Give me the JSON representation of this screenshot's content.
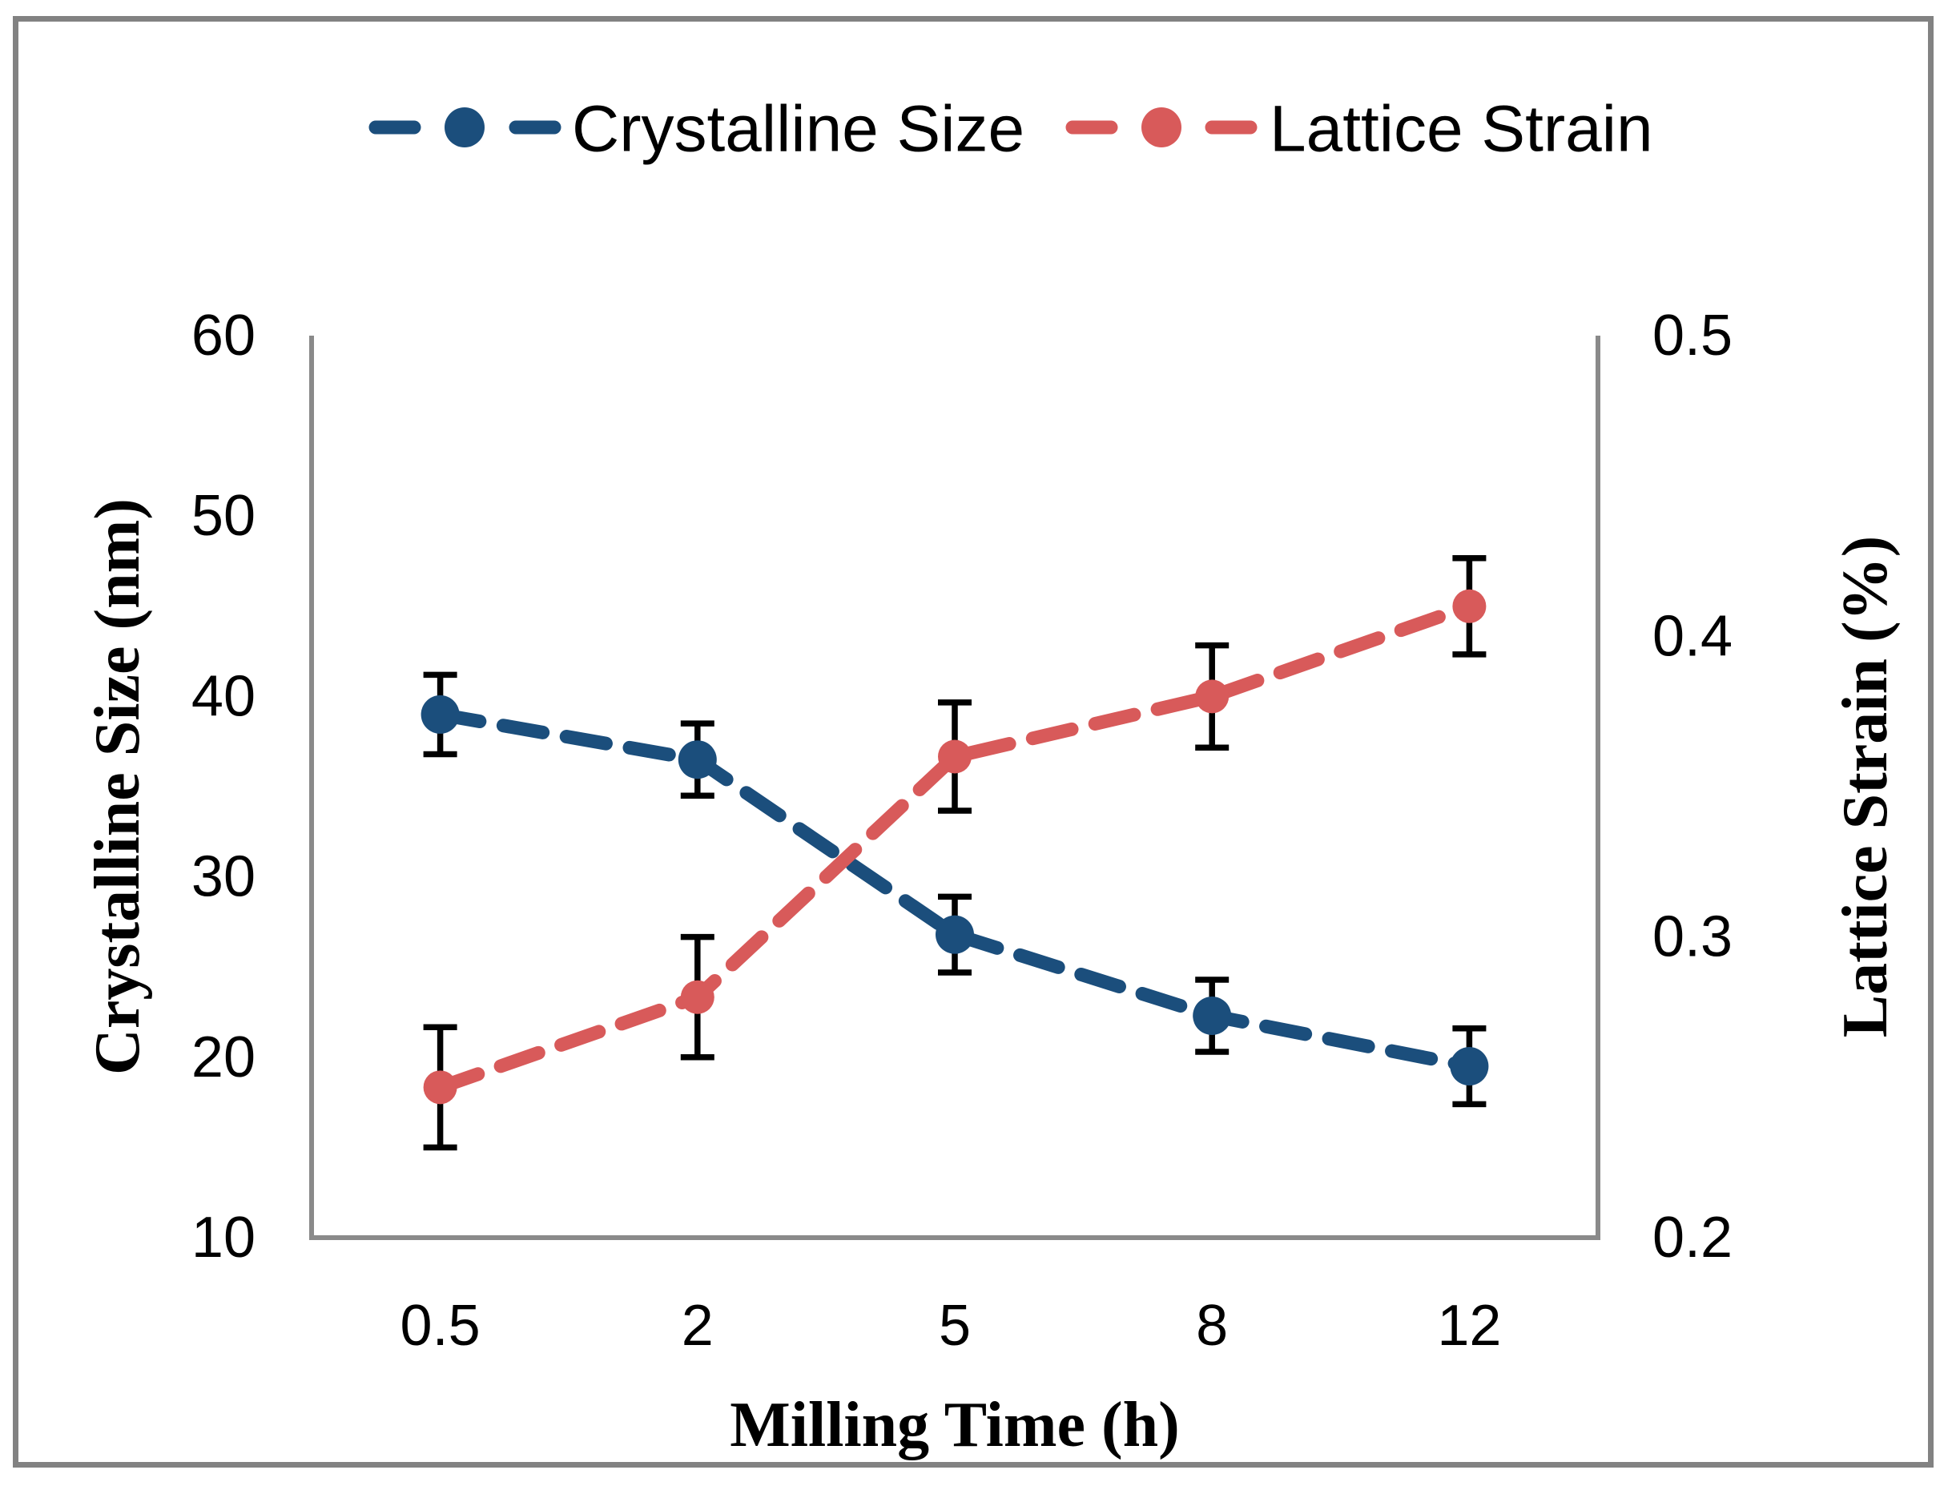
{
  "figure": {
    "background": "#FFFFFF",
    "border_color": "#828282"
  },
  "legend": {
    "position": "top-center",
    "entries": [
      {
        "label": "Crystalline Size",
        "color": "#1B4E7C",
        "glyph": "dash-circle-dash"
      },
      {
        "label": "Lattice Strain",
        "color": "#D85A5A",
        "glyph": "dash-circle-dash"
      }
    ]
  },
  "chart_data": {
    "type": "line",
    "title": "",
    "grid": false,
    "legend_position": "top",
    "axis_line_color": "#8A8A8A",
    "error_bar_color": "#000000",
    "categories": [
      "0.5",
      "2",
      "5",
      "8",
      "12"
    ],
    "x_axis": {
      "title": "Milling Time (h)"
    },
    "left_axis": {
      "title": "Crystalline Size (nm)",
      "min": 10,
      "max": 60,
      "tick_step": 10,
      "tick_labels": [
        "10",
        "20",
        "30",
        "40",
        "50",
        "60"
      ]
    },
    "right_axis": {
      "title": "Lattice Strain (%)",
      "min": 0.2,
      "max": 0.5,
      "tick_step": 0.1,
      "tick_labels": [
        "0.2",
        "0.3",
        "0.4",
        "0.5"
      ]
    },
    "series": [
      {
        "name": "Crystalline Size",
        "axis": "left",
        "color": "#1B4E7C",
        "line_style": "dashed",
        "marker": "circle",
        "values": [
          39.0,
          36.5,
          26.8,
          22.3,
          19.5
        ],
        "error_bars": [
          2.2,
          2.0,
          2.1,
          2.0,
          2.1
        ]
      },
      {
        "name": "Lattice Strain",
        "axis": "right",
        "color": "#D85A5A",
        "line_style": "dashed",
        "marker": "circle",
        "values": [
          0.25,
          0.28,
          0.36,
          0.38,
          0.41
        ],
        "error_bars": [
          0.02,
          0.02,
          0.018,
          0.017,
          0.016
        ]
      }
    ]
  }
}
